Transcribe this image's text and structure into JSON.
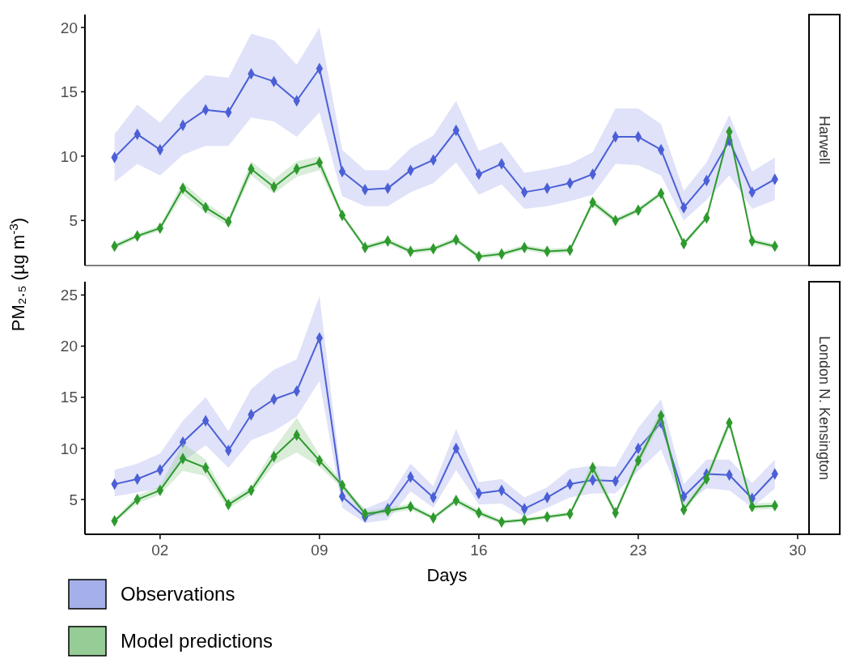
{
  "chart_data": [
    {
      "type": "line",
      "title": "Harwell",
      "ylabel": "PM₂.₅ (µg m$^{-3}$)",
      "x": [
        0,
        1,
        2,
        3,
        4,
        5,
        6,
        7,
        8,
        9,
        10,
        11,
        12,
        13,
        14,
        15,
        16,
        17,
        18,
        19,
        20,
        21,
        22,
        23,
        24,
        25,
        26,
        27,
        28,
        29
      ],
      "xlim": [
        -1.3,
        30.5
      ],
      "ylim": [
        1.5,
        21
      ],
      "yticks": [
        5,
        10,
        15,
        20
      ],
      "tick_labels": "y",
      "marker": "diamond",
      "line_style": "solid",
      "series": [
        {
          "color": "#4b5fd6",
          "values": [
            9.9,
            11.7,
            10.5,
            12.4,
            13.6,
            13.4,
            16.4,
            15.8,
            14.3,
            16.8,
            8.8,
            7.4,
            7.5,
            8.9,
            9.7,
            12.0,
            8.6,
            9.4,
            7.2,
            7.5,
            7.9,
            8.6,
            11.5,
            11.5,
            10.5,
            6.0,
            8.1,
            11.2,
            7.2,
            8.2
          ],
          "lower": [
            8.0,
            9.4,
            8.5,
            10.1,
            10.8,
            10.8,
            13.0,
            12.7,
            11.5,
            13.4,
            6.9,
            6.1,
            6.1,
            7.2,
            7.9,
            9.5,
            7.0,
            7.8,
            5.9,
            6.1,
            6.5,
            7.0,
            9.4,
            9.3,
            8.5,
            5.0,
            6.6,
            8.5,
            5.9,
            6.6
          ],
          "upper": [
            11.7,
            14.0,
            12.6,
            14.6,
            16.3,
            16.1,
            19.5,
            19.0,
            17.1,
            20.0,
            10.5,
            8.9,
            8.9,
            10.6,
            11.6,
            14.3,
            10.4,
            11.1,
            8.7,
            9.0,
            9.4,
            10.3,
            13.7,
            13.7,
            12.5,
            7.3,
            9.5,
            13.2,
            8.8,
            9.9
          ]
        },
        {
          "color": "#2e9a2e",
          "values": [
            3.0,
            3.8,
            4.4,
            7.5,
            6.0,
            4.9,
            9.0,
            7.6,
            9.0,
            9.5,
            5.4,
            2.9,
            3.4,
            2.6,
            2.8,
            3.5,
            2.2,
            2.4,
            2.9,
            2.6,
            2.7,
            6.4,
            5.0,
            5.8,
            7.1,
            3.2,
            5.2,
            11.9,
            3.4,
            3.0
          ],
          "lower": [
            2.8,
            3.6,
            4.2,
            7.0,
            5.6,
            4.6,
            8.5,
            7.1,
            8.4,
            8.9,
            5.2,
            2.7,
            3.2,
            2.4,
            2.6,
            3.3,
            2.0,
            2.2,
            2.7,
            2.4,
            2.5,
            6.1,
            4.8,
            5.6,
            6.9,
            3.0,
            5.0,
            11.6,
            3.2,
            2.8
          ],
          "upper": [
            3.2,
            4.0,
            4.6,
            8.0,
            6.4,
            5.2,
            9.6,
            8.2,
            9.6,
            10.0,
            5.6,
            3.1,
            3.6,
            2.8,
            3.0,
            3.7,
            2.4,
            2.6,
            3.1,
            2.8,
            2.9,
            6.7,
            5.2,
            6.0,
            7.3,
            3.4,
            5.4,
            12.2,
            3.6,
            3.2
          ]
        }
      ]
    },
    {
      "type": "line",
      "title": "London N. Kensington",
      "xlabel": "Days",
      "x": [
        0,
        1,
        2,
        3,
        4,
        5,
        6,
        7,
        8,
        9,
        10,
        11,
        12,
        13,
        14,
        15,
        16,
        17,
        18,
        19,
        20,
        21,
        22,
        23,
        24,
        25,
        26,
        27,
        28,
        29
      ],
      "xlim": [
        -1.3,
        30.5
      ],
      "xticks": [
        {
          "value": 2,
          "label": "02"
        },
        {
          "value": 9,
          "label": "09"
        },
        {
          "value": 16,
          "label": "16"
        },
        {
          "value": 23,
          "label": "23"
        },
        {
          "value": 30,
          "label": "30"
        }
      ],
      "ylim": [
        1.6,
        26.3
      ],
      "yticks": [
        5,
        10,
        15,
        20,
        25
      ],
      "marker": "diamond",
      "line_style": "solid",
      "legend": "bottom left",
      "series": [
        {
          "name": "Observations",
          "color": "#4b5fd6",
          "values": [
            6.5,
            7.0,
            7.9,
            10.6,
            12.7,
            9.8,
            13.3,
            14.8,
            15.6,
            20.8,
            5.3,
            3.3,
            4.1,
            7.2,
            5.2,
            10.0,
            5.6,
            5.9,
            4.1,
            5.2,
            6.5,
            6.9,
            6.8,
            10.0,
            12.5,
            5.3,
            7.5,
            7.4,
            5.1,
            7.5
          ],
          "lower": [
            5.3,
            5.7,
            6.1,
            8.7,
            10.3,
            8.1,
            10.8,
            11.7,
            13.1,
            16.6,
            4.2,
            2.7,
            3.0,
            5.8,
            4.2,
            7.9,
            4.5,
            4.6,
            3.3,
            4.2,
            5.2,
            5.6,
            5.6,
            7.8,
            9.9,
            4.4,
            6.1,
            5.9,
            4.2,
            6.1
          ],
          "upper": [
            7.9,
            8.5,
            9.5,
            12.7,
            15.0,
            11.7,
            15.8,
            17.7,
            18.7,
            24.9,
            6.3,
            4.1,
            5.0,
            8.5,
            6.3,
            11.9,
            6.7,
            7.0,
            5.2,
            6.2,
            8.0,
            8.3,
            8.2,
            12.0,
            14.8,
            6.5,
            8.9,
            8.9,
            6.6,
            8.9
          ]
        },
        {
          "name": "Model predictions",
          "color": "#2e9a2e",
          "values": [
            2.9,
            5.0,
            5.9,
            9.0,
            8.1,
            4.5,
            5.9,
            9.2,
            11.3,
            8.8,
            6.4,
            3.6,
            3.9,
            4.3,
            3.2,
            4.9,
            3.7,
            2.8,
            3.0,
            3.3,
            3.6,
            8.1,
            3.7,
            8.8,
            13.2,
            4.0,
            7.0,
            12.5,
            4.3,
            4.4
          ],
          "lower": [
            2.7,
            4.6,
            5.5,
            7.8,
            7.3,
            4.1,
            5.5,
            8.4,
            9.6,
            8.2,
            6.1,
            3.3,
            3.6,
            4.0,
            3.0,
            4.6,
            3.4,
            2.6,
            2.8,
            3.1,
            3.4,
            7.6,
            3.4,
            8.3,
            12.6,
            3.7,
            6.6,
            12.0,
            4.0,
            4.1
          ],
          "upper": [
            3.1,
            5.4,
            6.3,
            10.5,
            8.9,
            4.9,
            6.3,
            10.0,
            13.0,
            9.4,
            6.7,
            3.9,
            4.2,
            4.6,
            3.4,
            5.2,
            4.0,
            3.0,
            3.2,
            3.5,
            3.8,
            8.8,
            4.0,
            9.3,
            13.8,
            4.3,
            7.4,
            13.0,
            4.6,
            4.7
          ]
        }
      ]
    }
  ]
}
